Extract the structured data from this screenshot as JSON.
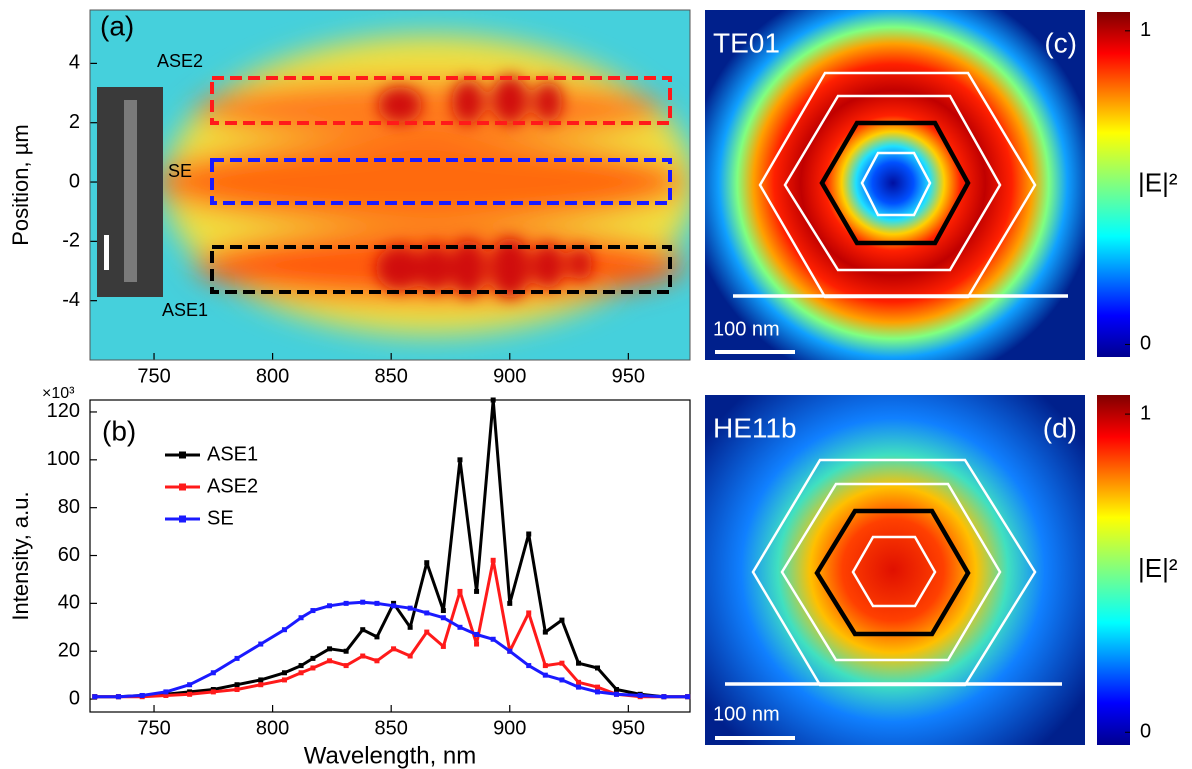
{
  "chart_data": [
    {
      "type": "heatmap",
      "panel_label": "(a)",
      "y_label": "Position, µm",
      "xlim": [
        723,
        976
      ],
      "ylim": [
        -6,
        5.8
      ],
      "xticks": [
        750,
        800,
        850,
        900,
        950
      ],
      "yticks": [
        -4,
        -2,
        0,
        2,
        4
      ],
      "annotations": [
        "ASE2",
        "SE",
        "ASE1"
      ]
    },
    {
      "type": "line",
      "panel_label": "(b)",
      "x_label": "Wavelength, nm",
      "y_label": "Intensity, a.u.",
      "y_multiplier": "×10³",
      "xlim": [
        723,
        976
      ],
      "ylim": [
        -5.4,
        125
      ],
      "xticks": [
        750,
        800,
        850,
        900,
        950
      ],
      "yticks": [
        0,
        20,
        40,
        60,
        80,
        100,
        120
      ],
      "legend": "upper left",
      "x": [
        725,
        735,
        745,
        755,
        765,
        775,
        785,
        795,
        805,
        812,
        817,
        824,
        831,
        838,
        844,
        851,
        858,
        865,
        872,
        879,
        886,
        893,
        900,
        908,
        915,
        922,
        929,
        937,
        945,
        955,
        965,
        975
      ],
      "series": [
        {
          "name": "ASE1",
          "color": "#000000",
          "values": [
            1,
            1,
            1.5,
            2,
            3,
            4,
            6,
            8,
            11,
            14,
            17,
            21,
            20,
            29,
            26,
            40,
            30,
            57,
            37,
            100,
            45,
            125,
            40,
            69,
            28,
            33,
            15,
            13,
            4,
            2,
            1,
            1
          ]
        },
        {
          "name": "ASE2",
          "color": "#ff1a1a",
          "values": [
            1,
            1,
            1,
            1.5,
            2,
            3,
            4,
            6,
            8,
            11,
            13,
            16,
            14,
            18,
            16,
            21,
            18,
            28,
            22,
            45,
            23,
            58,
            20,
            36,
            14,
            15,
            7,
            5,
            2,
            1,
            1,
            1
          ]
        },
        {
          "name": "SE",
          "color": "#1a1aff",
          "values": [
            1,
            1,
            1.5,
            3,
            6,
            11,
            17,
            23,
            29,
            34,
            37,
            39,
            40,
            40.5,
            40,
            39,
            38,
            36,
            34,
            30,
            27,
            25,
            20,
            14,
            10,
            8,
            5,
            3,
            2,
            1.5,
            1,
            1
          ]
        }
      ]
    },
    {
      "type": "image",
      "title": "TE01",
      "panel_label": "(c)",
      "scale_bar": "100 nm",
      "colorbar": {
        "label": "|E|²",
        "ylim": [
          -0.04,
          1.06
        ],
        "yticks": [
          0,
          1
        ]
      }
    },
    {
      "type": "image",
      "title": "HE11b",
      "panel_label": "(d)",
      "scale_bar": "100 nm",
      "colorbar": {
        "label": "|E|²",
        "ylim": [
          -0.04,
          1.06
        ],
        "yticks": [
          0,
          1
        ]
      }
    }
  ]
}
